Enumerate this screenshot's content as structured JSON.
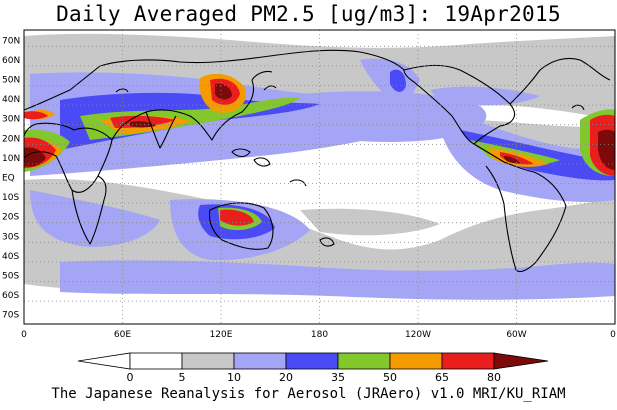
{
  "title": "Daily Averaged PM2.5 [ug/m3]: 19Apr2015",
  "footer": "The Japanese Reanalysis for Aerosol (JRAero) v1.0 MRI/KU_RIAM",
  "lat_labels": [
    "70N",
    "60N",
    "50N",
    "40N",
    "30N",
    "20N",
    "10N",
    "EQ",
    "10S",
    "20S",
    "30S",
    "40S",
    "50S",
    "60S",
    "70S"
  ],
  "lon_labels": [
    "0",
    "60E",
    "120E",
    "180",
    "120W",
    "60W",
    "0"
  ],
  "colorbar": {
    "ticks": [
      "0",
      "5",
      "10",
      "20",
      "35",
      "50",
      "65",
      "80"
    ],
    "colors": [
      "#ffffff",
      "#c8c8c8",
      "#a5a5f5",
      "#4b4bf5",
      "#82c82d",
      "#f59b00",
      "#eb1e1e",
      "#7d0a0a"
    ]
  },
  "chart_data": {
    "type": "heatmap",
    "title": "Daily Averaged PM2.5 [ug/m3]: 19Apr2015",
    "variable": "PM2.5",
    "units": "ug/m3",
    "date": "19Apr2015",
    "lon_range": [
      0,
      360
    ],
    "lat_range": [
      -75,
      75
    ],
    "levels": [
      0,
      5,
      10,
      20,
      35,
      50,
      65,
      80
    ]
  }
}
